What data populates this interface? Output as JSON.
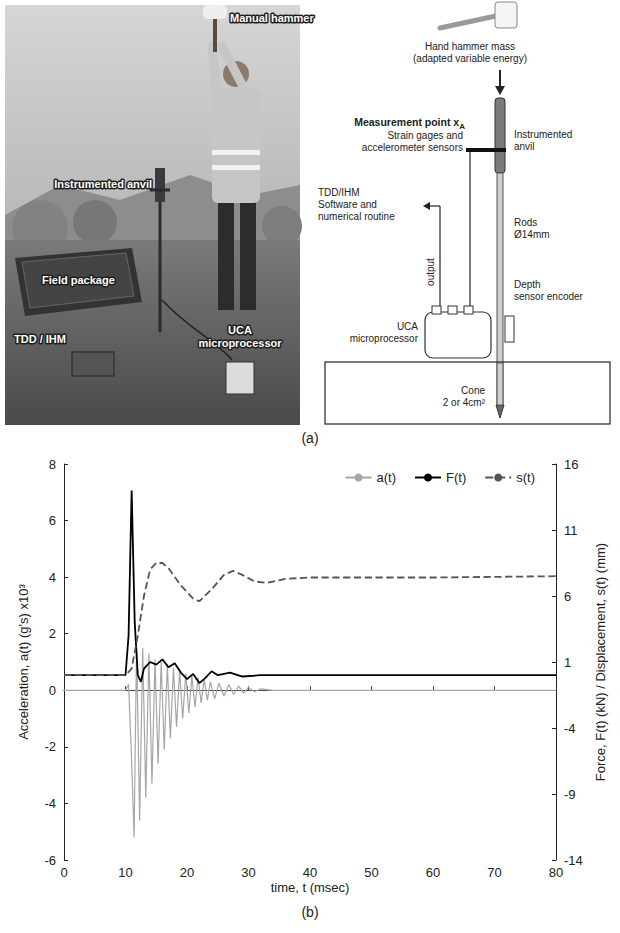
{
  "panel_labels": [
    "(a)",
    "(b)"
  ],
  "photo": {
    "manual_hammer": "Manual hammer",
    "instrumented_anvil": "Instrumented anvil",
    "field_package": "Field package",
    "tdd_ihm": "TDD / IHM",
    "uca": [
      "UCA",
      "microprocessor"
    ]
  },
  "diagram": {
    "hammer": [
      "Hand hammer mass",
      "(adapted variable energy)"
    ],
    "measurement_point": {
      "text": "Measurement point x",
      "subscript": "A"
    },
    "sensors": [
      "Strain gages and",
      "accelerometer sensors"
    ],
    "anvil": [
      "Instrumented",
      "anvil"
    ],
    "software": [
      "TDD/IHM",
      "Software and",
      "numerical routine"
    ],
    "output": "output",
    "rods": [
      "Rods",
      "Ø14mm"
    ],
    "encoder": [
      "Depth",
      "sensor encoder"
    ],
    "uca": [
      "UCA",
      "microprocessor"
    ],
    "cone": [
      "Cone",
      "2 or 4cm²"
    ]
  },
  "chart_data": {
    "type": "line",
    "xlabel": "time, t (msec)",
    "ylabel": "Acceleration, a(t) (g's) x10³",
    "y2label": "Force, F(t) (kN) / Displacement, s(t) (mm)",
    "xlim": [
      0,
      80
    ],
    "xticks": [
      0,
      10,
      20,
      30,
      40,
      50,
      60,
      70,
      80
    ],
    "ylim": [
      -6,
      8
    ],
    "yticks": [
      -6,
      -4,
      -2,
      0,
      2,
      4,
      6,
      8
    ],
    "y2lim": [
      -14,
      16
    ],
    "y2ticks": [
      -14,
      -9,
      -4,
      1,
      6,
      11,
      16
    ],
    "grid": false,
    "legend": "top-right",
    "series": [
      {
        "name": "a(t)",
        "color": "#a6a6a6",
        "line_style": "solid",
        "axis": "y",
        "x": [
          0,
          10,
          10.5,
          11,
          11.4,
          11.8,
          12.3,
          12.8,
          13.3,
          13.8,
          14.3,
          14.8,
          15.3,
          15.8,
          16.3,
          16.8,
          17.3,
          17.8,
          18.3,
          18.8,
          19.3,
          19.8,
          20.3,
          20.8,
          21.3,
          21.8,
          22.3,
          22.8,
          23.3,
          23.8,
          24.5,
          25.2,
          26,
          26.8,
          27.6,
          28.4,
          29.2,
          30,
          31,
          32,
          34,
          80
        ],
        "values": [
          0,
          0,
          0.2,
          -2.5,
          -5.2,
          1.6,
          -4.6,
          1.5,
          -3.8,
          1.3,
          -3.3,
          1.1,
          -2.6,
          1.0,
          -2.1,
          0.9,
          -1.7,
          0.8,
          -1.3,
          0.7,
          -1.0,
          0.6,
          -0.8,
          0.5,
          -0.6,
          0.45,
          -0.45,
          0.4,
          -0.35,
          0.3,
          -0.3,
          0.25,
          -0.2,
          0.2,
          -0.15,
          0.15,
          -0.1,
          0.1,
          -0.05,
          0.05,
          0,
          0
        ]
      },
      {
        "name": "F(t)",
        "color": "#000000",
        "line_style": "solid",
        "axis": "y2",
        "x": [
          0,
          10,
          10.5,
          11,
          11.5,
          12,
          12.5,
          13,
          14,
          15,
          16,
          17,
          18,
          19,
          20,
          21,
          22,
          23,
          24,
          25,
          27,
          29,
          32,
          80
        ],
        "values": [
          0,
          0,
          3,
          14,
          4,
          0,
          -0.5,
          0.5,
          1.0,
          0.8,
          1.2,
          0.6,
          0.9,
          0.2,
          -0.3,
          0.1,
          -0.6,
          -0.2,
          0.3,
          0,
          0.2,
          -0.1,
          0,
          0
        ]
      },
      {
        "name": "s(t)",
        "color": "#555555",
        "line_style": "dashed",
        "axis": "y2",
        "x": [
          0,
          10,
          11,
          12,
          13,
          14,
          15,
          16,
          17,
          19,
          21,
          22,
          24,
          26,
          27.5,
          29,
          31,
          33,
          36,
          40,
          50,
          60,
          80
        ],
        "values": [
          0,
          0,
          0.5,
          3,
          6,
          8,
          8.5,
          8.5,
          8.1,
          6.8,
          5.8,
          5.6,
          6.5,
          7.6,
          7.9,
          7.6,
          7.1,
          7.0,
          7.3,
          7.4,
          7.4,
          7.4,
          7.5
        ]
      }
    ]
  }
}
